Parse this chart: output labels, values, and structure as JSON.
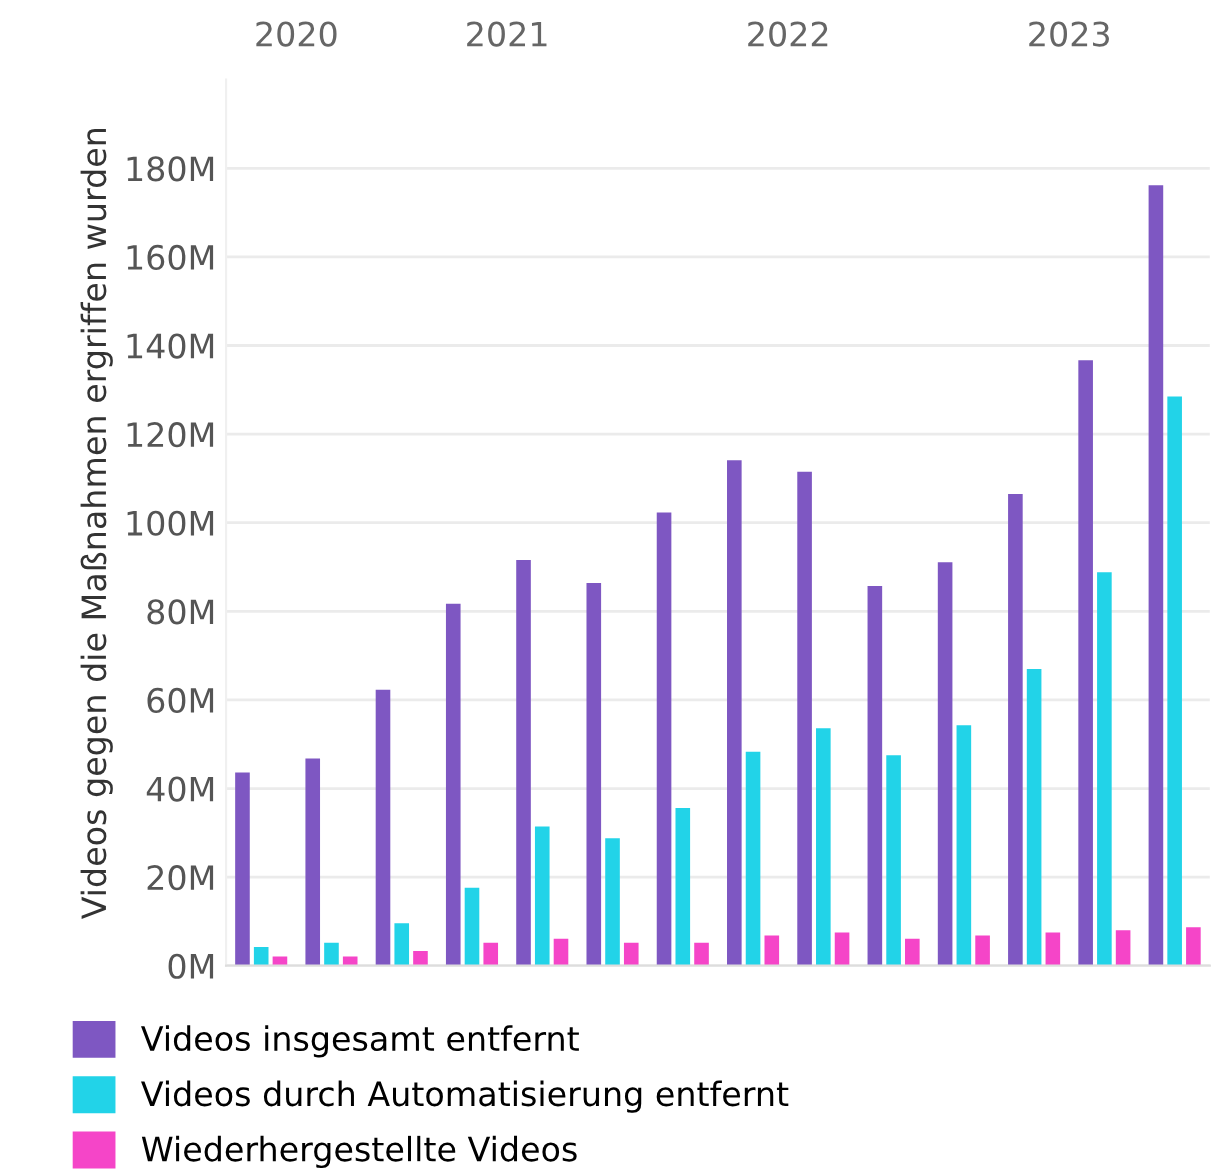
{
  "chart_data": {
    "type": "bar",
    "ylabel": "Videos gegen die Maßnahmen ergriffen wurden",
    "categories": [
      null,
      null,
      null,
      null,
      null,
      null,
      null,
      null,
      null,
      null,
      null,
      null,
      null,
      null
    ],
    "series": [
      {
        "name": "Videos insgesamt entfernt",
        "color": "#7e57c2",
        "values": [
          43.6,
          46.8,
          62.3,
          81.7,
          91.6,
          86.4,
          102.3,
          114.1,
          111.5,
          85.7,
          91.1,
          106.5,
          136.7,
          176.2
        ]
      },
      {
        "name": "Videos durch Automatisierung entfernt",
        "color": "#22d3e8",
        "values": [
          4.2,
          5.2,
          9.6,
          17.6,
          31.4,
          28.8,
          35.6,
          48.3,
          53.6,
          47.5,
          54.3,
          67,
          88.8,
          128.5
        ]
      },
      {
        "name": "Wiederhergestellte Videos",
        "color": "#f545c8",
        "values": [
          2.1,
          2.1,
          3.3,
          5.2,
          6.1,
          5.2,
          5.2,
          6.8,
          7.5,
          6.1,
          6.8,
          7.5,
          8,
          8.7
        ]
      }
    ],
    "annotations": [
      "2020",
      "2021",
      "2022",
      "2023"
    ],
    "ylim": [
      0,
      200
    ],
    "yticks": [
      {
        "value": 0,
        "label": "0M"
      },
      {
        "value": 20,
        "label": "20M"
      },
      {
        "value": 40,
        "label": "40M"
      },
      {
        "value": 60,
        "label": "60M"
      },
      {
        "value": 80,
        "label": "80M"
      },
      {
        "value": 100,
        "label": "100M"
      },
      {
        "value": 120,
        "label": "120M"
      },
      {
        "value": 140,
        "label": "140M"
      },
      {
        "value": 160,
        "label": "160M"
      },
      {
        "value": 180,
        "label": "180M"
      }
    ],
    "grid": "y",
    "legend": "bottom"
  }
}
